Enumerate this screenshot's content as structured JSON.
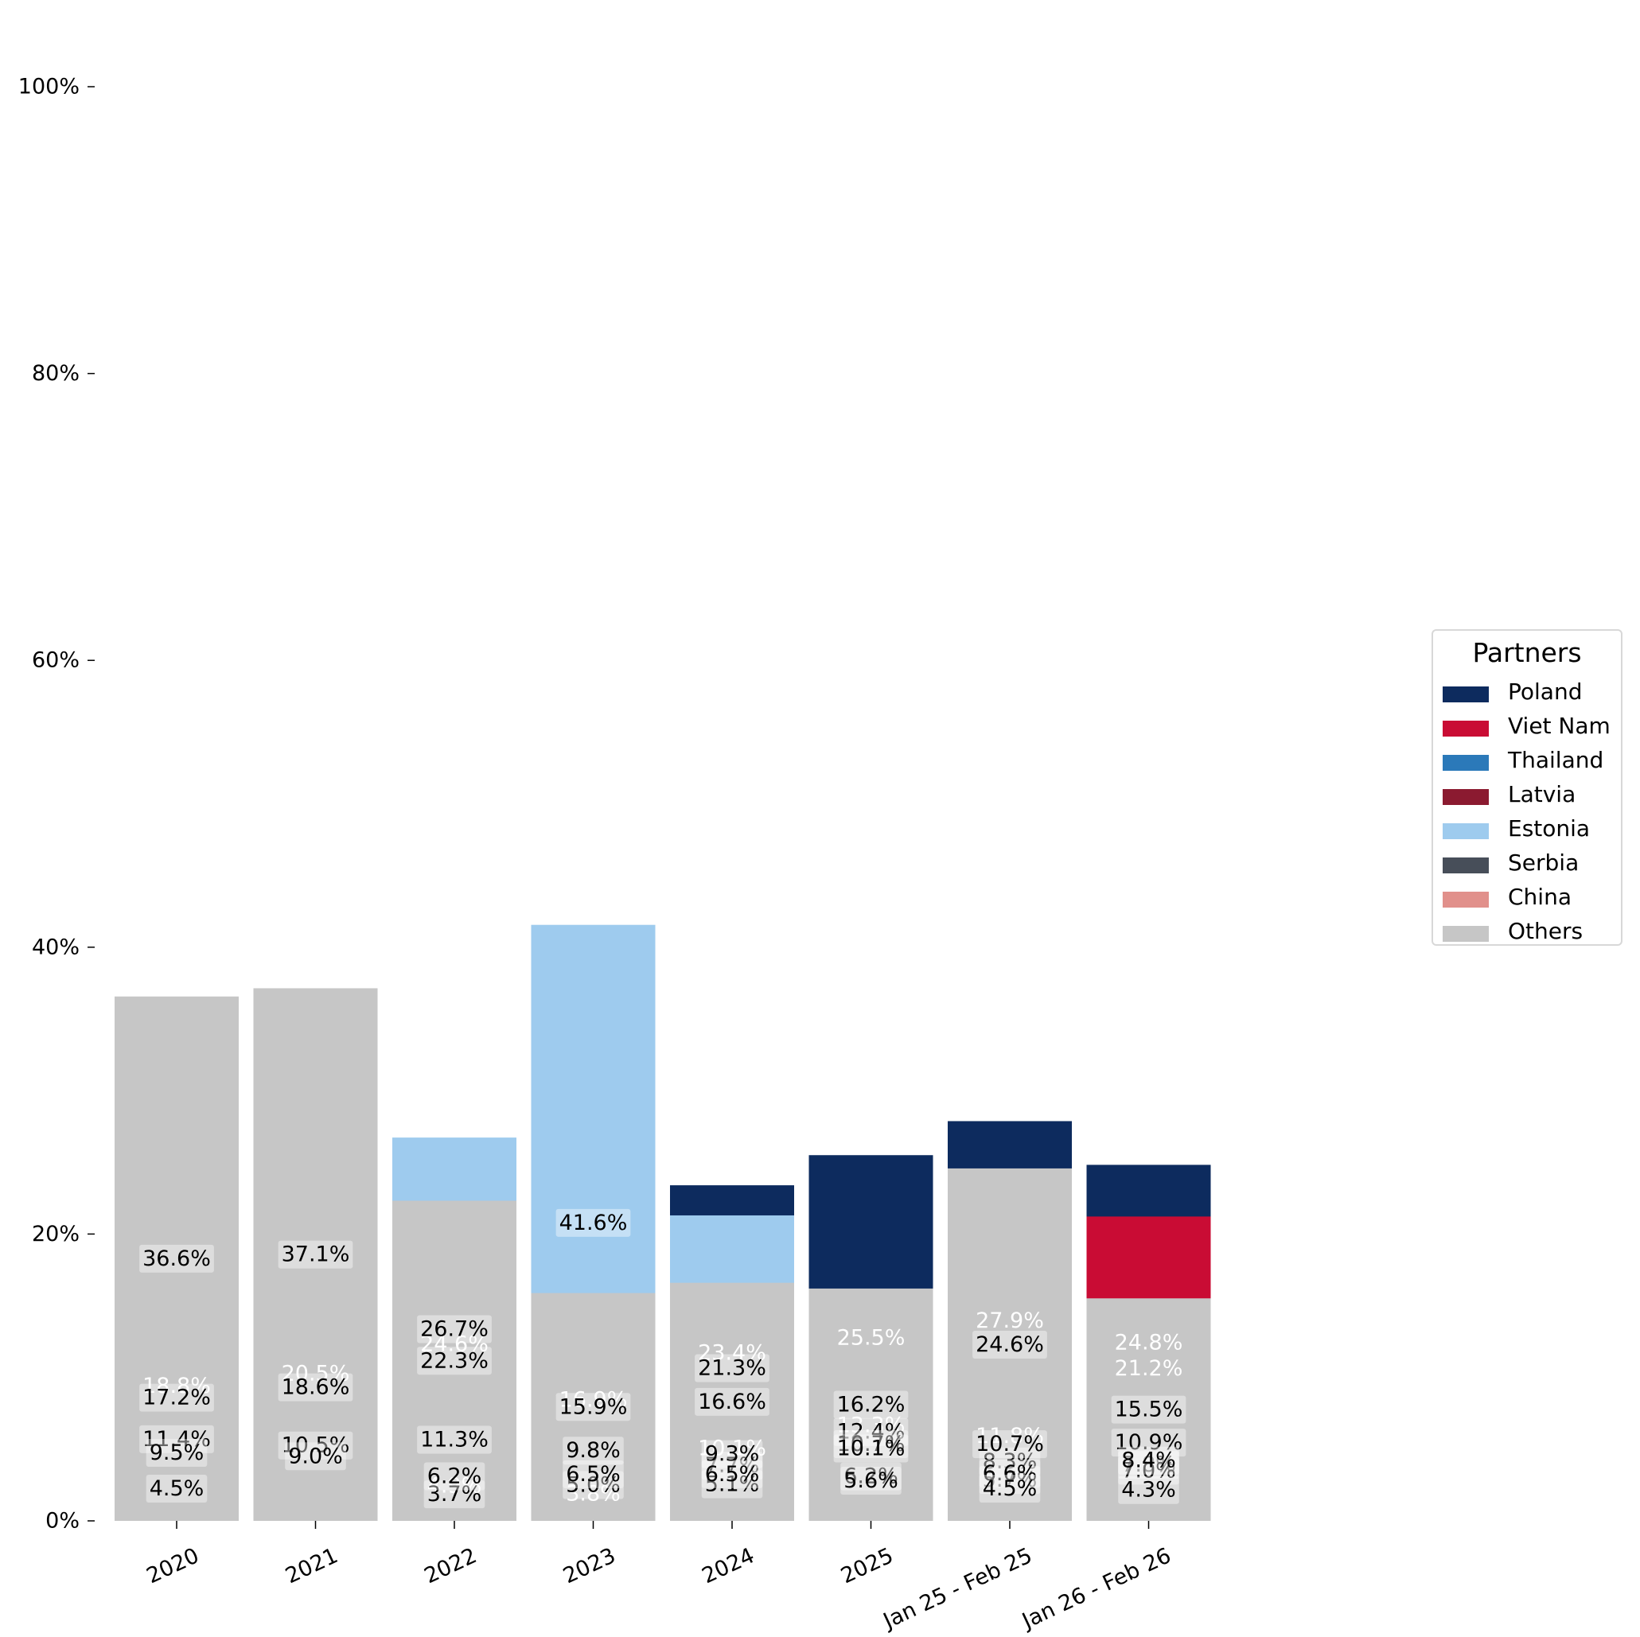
{
  "chart_data": {
    "type": "bar",
    "stacked": true,
    "categories": [
      "2020",
      "2021",
      "2022",
      "2023",
      "2024",
      "2025",
      "Jan 25 - Feb 25",
      "Jan 26 - Feb 26"
    ],
    "ylim": [
      0,
      100
    ],
    "yticks": [
      "0%",
      "20%",
      "40%",
      "60%",
      "80%",
      "100%"
    ],
    "ytick_values": [
      0,
      20,
      40,
      60,
      80,
      100
    ],
    "grid": false,
    "legend": {
      "title": "Partners",
      "placement": "right"
    },
    "series": [
      {
        "name": "Poland",
        "color": "#0d2b5e",
        "text_color": "#ffffff",
        "label_box": false,
        "values": [
          18.8,
          20.5,
          24.6,
          16.9,
          23.4,
          25.5,
          27.9,
          24.8
        ],
        "labels": [
          "18.8%",
          "20.5%",
          "24.6%",
          "16.9%",
          "23.4%",
          "25.5%",
          "27.9%",
          "24.8%"
        ]
      },
      {
        "name": "Viet Nam",
        "color": "#c90c34",
        "text_color": "#ffffff",
        "label_box": false,
        "values": [
          1.8,
          1.3,
          4.9,
          3.8,
          10.1,
          13.3,
          11.8,
          21.2
        ],
        "labels": [
          "",
          "",
          "4.9%",
          "3.8%",
          "10.1%",
          "13.3%",
          "11.8%",
          "21.2%"
        ]
      },
      {
        "name": "Thailand",
        "color": "#2b79b9",
        "text_color": "#000000",
        "label_box": true,
        "values": [
          4.5,
          2.6,
          3.7,
          5.0,
          7.7,
          12.4,
          8.3,
          10.9
        ],
        "labels": [
          "4.5%",
          "",
          "3.7%",
          "5.0%",
          "7.7%",
          "12.4%",
          "8.3%",
          "10.9%"
        ]
      },
      {
        "name": "Latvia",
        "color": "#8b1a30",
        "text_color": "#000000",
        "label_box": true,
        "values": [
          11.4,
          10.5,
          11.3,
          9.8,
          9.3,
          10.7,
          10.7,
          7.8
        ],
        "labels": [
          "11.4%",
          "10.5%",
          "11.3%",
          "9.8%",
          "9.3%",
          "10.7%",
          "10.7%",
          "7.8%"
        ]
      },
      {
        "name": "Estonia",
        "color": "#9ecbee",
        "text_color": "#000000",
        "label_box": true,
        "values": [
          17.2,
          18.6,
          26.7,
          41.6,
          21.3,
          10.1,
          5.7,
          7.0
        ],
        "labels": [
          "17.2%",
          "18.6%",
          "26.7%",
          "41.6%",
          "21.3%",
          "10.1%",
          "5.7%",
          "7.0%"
        ]
      },
      {
        "name": "Serbia",
        "color": "#474e59",
        "text_color": "#000000",
        "label_box": true,
        "values": [
          0.3,
          0.3,
          0.2,
          0.6,
          5.1,
          6.2,
          6.6,
          8.4
        ],
        "labels": [
          "",
          "",
          "",
          "",
          "5.1%",
          "6.2%",
          "6.6%",
          "8.4%"
        ]
      },
      {
        "name": "China",
        "color": "#e1908b",
        "text_color": "#000000",
        "label_box": true,
        "values": [
          9.5,
          9.0,
          6.2,
          6.5,
          6.5,
          5.6,
          4.5,
          4.3
        ],
        "labels": [
          "9.5%",
          "9.0%",
          "6.2%",
          "6.5%",
          "6.5%",
          "5.6%",
          "4.5%",
          "4.3%"
        ]
      },
      {
        "name": "Others",
        "color": "#c6c6c6",
        "text_color": "#000000",
        "label_box": true,
        "values": [
          36.6,
          37.1,
          22.3,
          15.9,
          16.6,
          16.2,
          24.6,
          15.5
        ],
        "labels": [
          "36.6%",
          "37.1%",
          "22.3%",
          "15.9%",
          "16.6%",
          "16.2%",
          "24.6%",
          "15.5%"
        ]
      }
    ]
  }
}
